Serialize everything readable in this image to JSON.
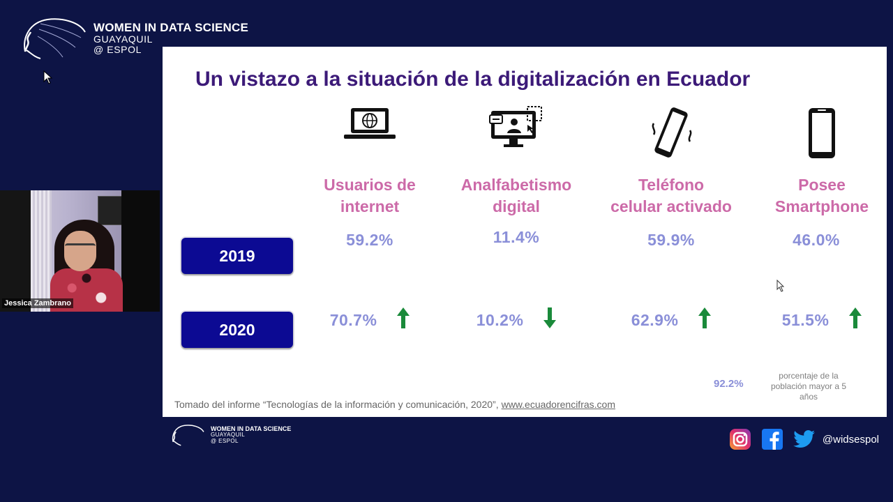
{
  "brand": {
    "line1": "WOMEN IN DATA SCIENCE",
    "line2": "GUAYAQUIL",
    "line3": "@ ESPOL"
  },
  "video": {
    "participant_name": "Jessica Zambrano"
  },
  "slide": {
    "title": "Un vistazo a la situación de la digitalización en Ecuador",
    "years": [
      "2019",
      "2020"
    ],
    "columns": [
      {
        "label_line1": "Usuarios de",
        "label_line2": "internet",
        "icon": "laptop-globe-icon",
        "value_2019": "59.2%",
        "value_2020": "70.7%",
        "trend_2020": "up"
      },
      {
        "label_line1": "Analfabetismo",
        "label_line2": "digital",
        "icon": "monitor-user-icon",
        "value_2019": "11.4%",
        "value_2020": "10.2%",
        "trend_2020": "down"
      },
      {
        "label_line1": "Teléfono",
        "label_line2": "celular activado",
        "icon": "vibrating-phone-icon",
        "value_2019": "59.9%",
        "value_2020": "62.9%",
        "trend_2020": "up"
      },
      {
        "label_line1": "Posee",
        "label_line2": "Smartphone",
        "icon": "smartphone-icon",
        "value_2019": "46.0%",
        "value_2020": "51.5%",
        "trend_2020": "up"
      }
    ],
    "extra_value": "92.2%",
    "extra_note": "porcentaje de la población mayor a 5 años",
    "source_text": "Tomado del informe “Tecnologías de la información y comunicación, 2020”,",
    "source_link": "www.ecuadorencifras.com"
  },
  "social": {
    "icons": [
      "instagram-icon",
      "facebook-icon",
      "twitter-icon"
    ],
    "handle": "@widsespol"
  },
  "colors": {
    "background": "#0d1445",
    "title": "#3c1a78",
    "label": "#cc6aa8",
    "value": "#8a8fd8",
    "year_badge": "#0c0a93",
    "arrow": "#1a8a3a"
  }
}
